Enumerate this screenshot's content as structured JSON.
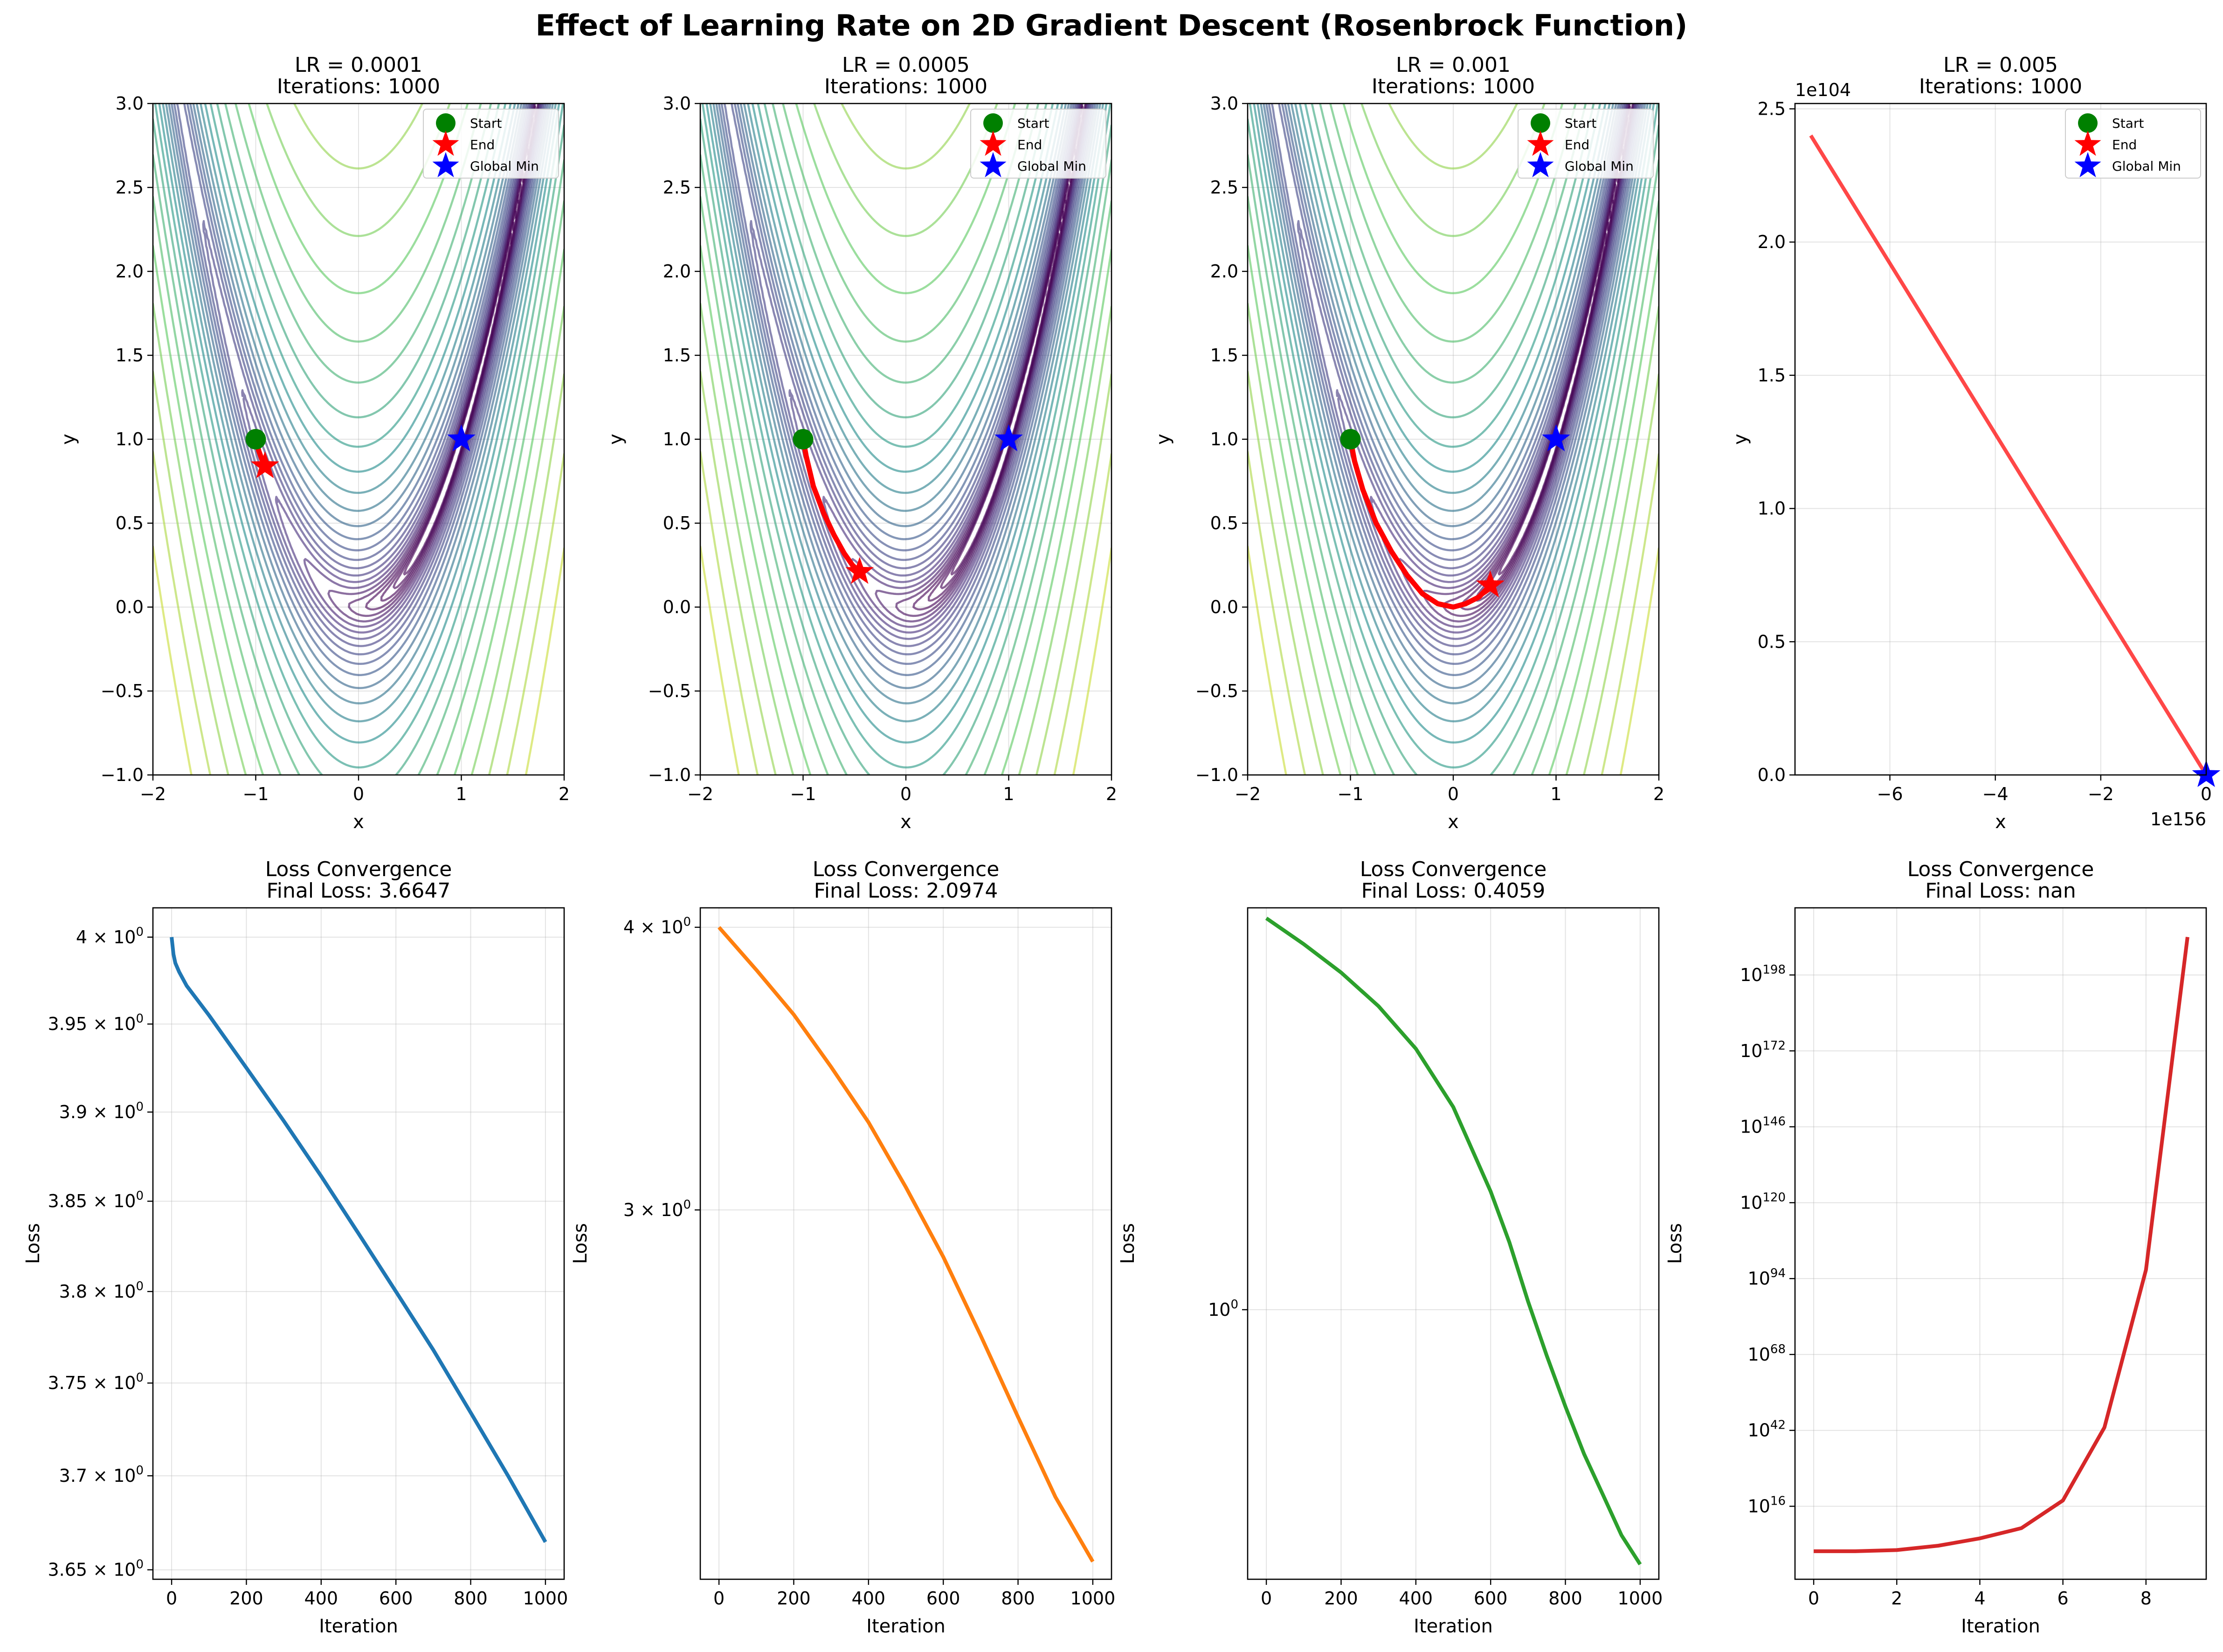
{
  "figure": {
    "title": "Effect of Learning Rate on 2D Gradient Descent (Rosenbrock Function)"
  },
  "chart_data": [
    {
      "type": "contour",
      "title": "LR = 0.0001\nIterations: 1000",
      "xlabel": "x",
      "ylabel": "y",
      "xlim": [
        -2,
        2
      ],
      "ylim": [
        -1,
        3
      ],
      "xticks": [
        -2,
        -1,
        0,
        1,
        2
      ],
      "yticks": [
        -1.0,
        -0.5,
        0.0,
        0.5,
        1.0,
        1.5,
        2.0,
        2.5,
        3.0
      ],
      "xtick_labels": [
        "−2",
        "−1",
        "0",
        "1",
        "2"
      ],
      "ytick_labels": [
        "−1.0",
        "−0.5",
        "0.0",
        "0.5",
        "1.0",
        "1.5",
        "2.0",
        "2.5",
        "3.0"
      ],
      "grid": true,
      "legend": {
        "position": "upper-right",
        "entries": [
          "Start",
          "End",
          "Global Min"
        ]
      },
      "start": [
        -1.0,
        1.0
      ],
      "end": [
        -0.91,
        0.84
      ],
      "global_min": [
        1.0,
        1.0
      ],
      "path": [
        [
          -1.0,
          1.0
        ],
        [
          -0.97,
          0.93
        ],
        [
          -0.94,
          0.88
        ],
        [
          -0.91,
          0.84
        ]
      ],
      "colors": {
        "path": "#ff0000",
        "start": "#008000",
        "end": "#ff0000",
        "min": "#0000ff"
      }
    },
    {
      "type": "contour",
      "title": "LR = 0.0005\nIterations: 1000",
      "xlabel": "x",
      "ylabel": "y",
      "xlim": [
        -2,
        2
      ],
      "ylim": [
        -1,
        3
      ],
      "xticks": [
        -2,
        -1,
        0,
        1,
        2
      ],
      "yticks": [
        -1.0,
        -0.5,
        0.0,
        0.5,
        1.0,
        1.5,
        2.0,
        2.5,
        3.0
      ],
      "xtick_labels": [
        "−2",
        "−1",
        "0",
        "1",
        "2"
      ],
      "ytick_labels": [
        "−1.0",
        "−0.5",
        "0.0",
        "0.5",
        "1.0",
        "1.5",
        "2.0",
        "2.5",
        "3.0"
      ],
      "grid": true,
      "legend": {
        "position": "upper-right",
        "entries": [
          "Start",
          "End",
          "Global Min"
        ]
      },
      "start": [
        -1.0,
        1.0
      ],
      "end": [
        -0.45,
        0.21
      ],
      "global_min": [
        1.0,
        1.0
      ],
      "path": [
        [
          -1.0,
          1.0
        ],
        [
          -0.97,
          0.9
        ],
        [
          -0.9,
          0.72
        ],
        [
          -0.8,
          0.56
        ],
        [
          -0.7,
          0.43
        ],
        [
          -0.6,
          0.32
        ],
        [
          -0.52,
          0.25
        ],
        [
          -0.45,
          0.21
        ]
      ],
      "colors": {
        "path": "#ff0000",
        "start": "#008000",
        "end": "#ff0000",
        "min": "#0000ff"
      }
    },
    {
      "type": "contour",
      "title": "LR = 0.001\nIterations: 1000",
      "xlabel": "x",
      "ylabel": "y",
      "xlim": [
        -2,
        2
      ],
      "ylim": [
        -1,
        3
      ],
      "xticks": [
        -2,
        -1,
        0,
        1,
        2
      ],
      "yticks": [
        -1.0,
        -0.5,
        0.0,
        0.5,
        1.0,
        1.5,
        2.0,
        2.5,
        3.0
      ],
      "xtick_labels": [
        "−2",
        "−1",
        "0",
        "1",
        "2"
      ],
      "ytick_labels": [
        "−1.0",
        "−0.5",
        "0.0",
        "0.5",
        "1.0",
        "1.5",
        "2.0",
        "2.5",
        "3.0"
      ],
      "grid": true,
      "legend": {
        "position": "upper-right",
        "entries": [
          "Start",
          "End",
          "Global Min"
        ]
      },
      "start": [
        -1.0,
        1.0
      ],
      "end": [
        0.36,
        0.13
      ],
      "global_min": [
        1.0,
        1.0
      ],
      "path": [
        [
          -1.0,
          1.0
        ],
        [
          -0.96,
          0.87
        ],
        [
          -0.88,
          0.7
        ],
        [
          -0.75,
          0.5
        ],
        [
          -0.6,
          0.33
        ],
        [
          -0.45,
          0.19
        ],
        [
          -0.3,
          0.08
        ],
        [
          -0.15,
          0.02
        ],
        [
          0.0,
          0.0
        ],
        [
          0.12,
          0.02
        ],
        [
          0.25,
          0.06
        ],
        [
          0.36,
          0.13
        ]
      ],
      "colors": {
        "path": "#ff0000",
        "start": "#008000",
        "end": "#ff0000",
        "min": "#0000ff"
      }
    },
    {
      "type": "line",
      "title": "LR = 0.005\nIterations: 1000",
      "xlabel": "x",
      "ylabel": "y",
      "xlim": [
        -7.8,
        0.0
      ],
      "ylim": [
        0.0,
        2.52
      ],
      "x_offset": "1e156",
      "y_offset": "1e104",
      "xticks": [
        -6,
        -4,
        -2,
        0
      ],
      "yticks": [
        0.0,
        0.5,
        1.0,
        1.5,
        2.0,
        2.5
      ],
      "xtick_labels": [
        "−6",
        "−4",
        "−2",
        "0"
      ],
      "ytick_labels": [
        "0.0",
        "0.5",
        "1.0",
        "1.5",
        "2.0",
        "2.5"
      ],
      "grid": true,
      "legend": {
        "position": "upper-right",
        "entries": [
          "Start",
          "End",
          "Global Min"
        ]
      },
      "path": [
        [
          -7.5,
          2.4
        ],
        [
          0.0,
          0.0
        ]
      ],
      "global_min": [
        0.0,
        0.0
      ],
      "colors": {
        "path": "#ff0000",
        "start": "#008000",
        "end": "#ff0000",
        "min": "#0000ff"
      }
    },
    {
      "type": "line",
      "title": "Loss Convergence\nFinal Loss: 3.6647",
      "xlabel": "Iteration",
      "ylabel": "Loss",
      "yscale": "log",
      "xlim": [
        -50,
        1050
      ],
      "ylim": [
        3.645,
        4.017
      ],
      "xticks": [
        0,
        200,
        400,
        600,
        800,
        1000
      ],
      "xtick_labels": [
        "0",
        "200",
        "400",
        "600",
        "800",
        "1000"
      ],
      "yticks": [
        3.65,
        3.7,
        3.75,
        3.8,
        3.85,
        3.9,
        3.95,
        4.0
      ],
      "ytick_labels": [
        "3.65 × 10^0",
        "3.7 × 10^0",
        "3.75 × 10^0",
        "3.8 × 10^0",
        "3.85 × 10^0",
        "3.9 × 10^0",
        "3.95 × 10^0",
        "4 × 10^0"
      ],
      "grid": true,
      "color": "#1f77b4",
      "x": [
        0,
        5,
        10,
        20,
        40,
        100,
        200,
        300,
        400,
        500,
        600,
        700,
        800,
        900,
        1000
      ],
      "y": [
        4.0,
        3.99,
        3.985,
        3.98,
        3.972,
        3.955,
        3.925,
        3.895,
        3.864,
        3.832,
        3.8,
        3.768,
        3.734,
        3.7,
        3.6647
      ]
    },
    {
      "type": "line",
      "title": "Loss Convergence\nFinal Loss: 2.0974",
      "xlabel": "Iteration",
      "ylabel": "Loss",
      "yscale": "log",
      "xlim": [
        -50,
        1050
      ],
      "ylim": [
        2.06,
        4.08
      ],
      "xticks": [
        0,
        200,
        400,
        600,
        800,
        1000
      ],
      "xtick_labels": [
        "0",
        "200",
        "400",
        "600",
        "800",
        "1000"
      ],
      "yticks": [
        3.0,
        4.0
      ],
      "ytick_labels": [
        "3 × 10^0",
        "4 × 10^0"
      ],
      "grid": true,
      "color": "#ff7f0e",
      "x": [
        0,
        100,
        200,
        300,
        400,
        500,
        600,
        700,
        800,
        900,
        1000
      ],
      "y": [
        4.0,
        3.83,
        3.66,
        3.47,
        3.28,
        3.07,
        2.86,
        2.64,
        2.43,
        2.24,
        2.0974
      ]
    },
    {
      "type": "line",
      "title": "Loss Convergence\nFinal Loss: 0.4059",
      "xlabel": "Iteration",
      "ylabel": "Loss",
      "yscale": "log",
      "xlim": [
        -50,
        1050
      ],
      "ylim": [
        0.385,
        4.15
      ],
      "xticks": [
        0,
        200,
        400,
        600,
        800,
        1000
      ],
      "xtick_labels": [
        "0",
        "200",
        "400",
        "600",
        "800",
        "1000"
      ],
      "yticks": [
        1.0
      ],
      "ytick_labels": [
        "10^0"
      ],
      "grid": true,
      "color": "#2ca02c",
      "x": [
        0,
        100,
        200,
        300,
        400,
        500,
        600,
        650,
        700,
        750,
        800,
        850,
        900,
        950,
        1000
      ],
      "y": [
        4.0,
        3.65,
        3.3,
        2.93,
        2.52,
        2.05,
        1.52,
        1.27,
        1.03,
        0.85,
        0.71,
        0.6,
        0.52,
        0.45,
        0.4059
      ]
    },
    {
      "type": "line",
      "title": "Loss Convergence\nFinal Loss: nan",
      "xlabel": "Iteration",
      "ylabel": "Loss",
      "yscale": "log",
      "xlim": [
        -0.45,
        9.45
      ],
      "ylim_log10": [
        -9,
        221
      ],
      "xticks": [
        0,
        2,
        4,
        6,
        8
      ],
      "xtick_labels": [
        "0",
        "2",
        "4",
        "6",
        "8"
      ],
      "yticks_log10": [
        16,
        42,
        68,
        94,
        120,
        146,
        172,
        198
      ],
      "ytick_labels": [
        "10^16",
        "10^42",
        "10^68",
        "10^94",
        "10^120",
        "10^146",
        "10^172",
        "10^198"
      ],
      "grid": true,
      "color": "#d62728",
      "x": [
        0,
        1,
        2,
        3,
        4,
        5,
        6,
        7,
        8,
        9
      ],
      "y_log10": [
        0.6,
        0.6,
        1.0,
        2.5,
        5.0,
        8.5,
        18.0,
        43.0,
        97.0,
        211.0
      ]
    }
  ]
}
